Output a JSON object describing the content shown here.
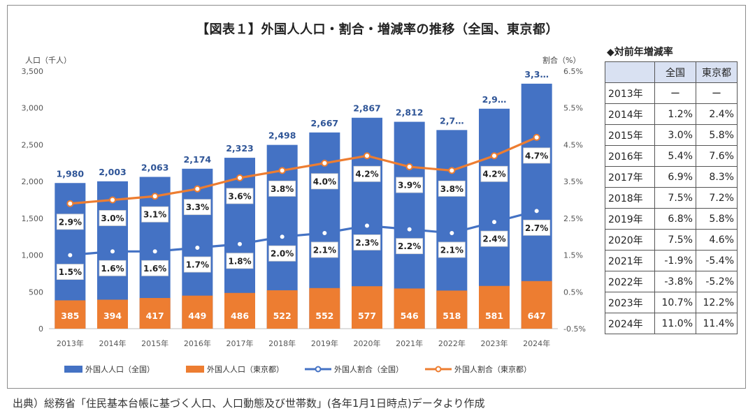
{
  "title": "【図表１】外国人人口・割合・増減率の推移（全国、東京都）",
  "source": "出典）総務省「住民基本台帳に基づく人口、人口動態及び世帯数」(各年1月1日時点)データより作成",
  "chart_data": {
    "type": "bar",
    "categories": [
      "2013年",
      "2014年",
      "2015年",
      "2016年",
      "2017年",
      "2018年",
      "2019年",
      "2020年",
      "2021年",
      "2022年",
      "2023年",
      "2024年"
    ],
    "left_axis": {
      "label": "人口（千人）",
      "ylim": [
        0,
        3500
      ],
      "ticks": [
        "0",
        "500",
        "1,000",
        "1,500",
        "2,000",
        "2,500",
        "3,000",
        "3,500"
      ],
      "tick_values": [
        0,
        500,
        1000,
        1500,
        2000,
        2500,
        3000,
        3500
      ]
    },
    "right_axis": {
      "label": "割合（%）",
      "ylim": [
        -0.5,
        6.5
      ],
      "ticks": [
        "-0.5%",
        "0.5%",
        "1.5%",
        "2.5%",
        "3.5%",
        "4.5%",
        "5.5%",
        "6.5%"
      ],
      "tick_values": [
        -0.5,
        0.5,
        1.5,
        2.5,
        3.5,
        4.5,
        5.5,
        6.5
      ]
    },
    "grid": false,
    "legend_position": "bottom",
    "series": [
      {
        "name": "外国人人口（全国）",
        "kind": "bar",
        "color": "#4472c4",
        "values": [
          1980,
          2003,
          2063,
          2174,
          2323,
          2498,
          2667,
          2867,
          2812,
          2700,
          2990,
          3330
        ],
        "labels": [
          "1,980",
          "2,003",
          "2,063",
          "2,174",
          "2,323",
          "2,498",
          "2,667",
          "2,867",
          "2,812",
          "2,7…",
          "2,9…",
          "3,3…"
        ]
      },
      {
        "name": "外国人人口（東京都）",
        "kind": "bar",
        "color": "#ed7d31",
        "values": [
          385,
          394,
          417,
          449,
          486,
          522,
          552,
          577,
          546,
          518,
          581,
          647
        ],
        "labels": [
          "385",
          "394",
          "417",
          "449",
          "486",
          "522",
          "552",
          "577",
          "546",
          "518",
          "581",
          "647"
        ]
      },
      {
        "name": "外国人割合（全国）",
        "kind": "line",
        "color": "#4472c4",
        "values": [
          1.5,
          1.6,
          1.6,
          1.7,
          1.8,
          2.0,
          2.1,
          2.3,
          2.2,
          2.1,
          2.4,
          2.7
        ],
        "labels": [
          "1.5%",
          "1.6%",
          "1.6%",
          "1.7%",
          "1.8%",
          "2.0%",
          "2.1%",
          "2.3%",
          "2.2%",
          "2.1%",
          "2.4%",
          "2.7%"
        ]
      },
      {
        "name": "外国人割合（東京都）",
        "kind": "line",
        "color": "#ed7d31",
        "values": [
          2.9,
          3.0,
          3.1,
          3.3,
          3.6,
          3.8,
          4.0,
          4.2,
          3.9,
          3.8,
          4.2,
          4.7
        ],
        "labels": [
          "2.9%",
          "3.0%",
          "3.1%",
          "3.3%",
          "3.6%",
          "3.8%",
          "4.0%",
          "4.2%",
          "3.9%",
          "3.8%",
          "4.2%",
          "4.7%"
        ]
      }
    ]
  },
  "growth_table": {
    "title": "◆対前年増減率",
    "headers": [
      "",
      "全国",
      "東京都"
    ],
    "rows": [
      [
        "2013年",
        "ー",
        "ー"
      ],
      [
        "2014年",
        "1.2%",
        "2.4%"
      ],
      [
        "2015年",
        "3.0%",
        "5.8%"
      ],
      [
        "2016年",
        "5.4%",
        "7.6%"
      ],
      [
        "2017年",
        "6.9%",
        "8.3%"
      ],
      [
        "2018年",
        "7.5%",
        "7.2%"
      ],
      [
        "2019年",
        "6.8%",
        "5.8%"
      ],
      [
        "2020年",
        "7.5%",
        "4.6%"
      ],
      [
        "2021年",
        "-1.9%",
        "-5.4%"
      ],
      [
        "2022年",
        "-3.8%",
        "-5.2%"
      ],
      [
        "2023年",
        "10.7%",
        "12.2%"
      ],
      [
        "2024年",
        "11.0%",
        "11.4%"
      ]
    ]
  }
}
